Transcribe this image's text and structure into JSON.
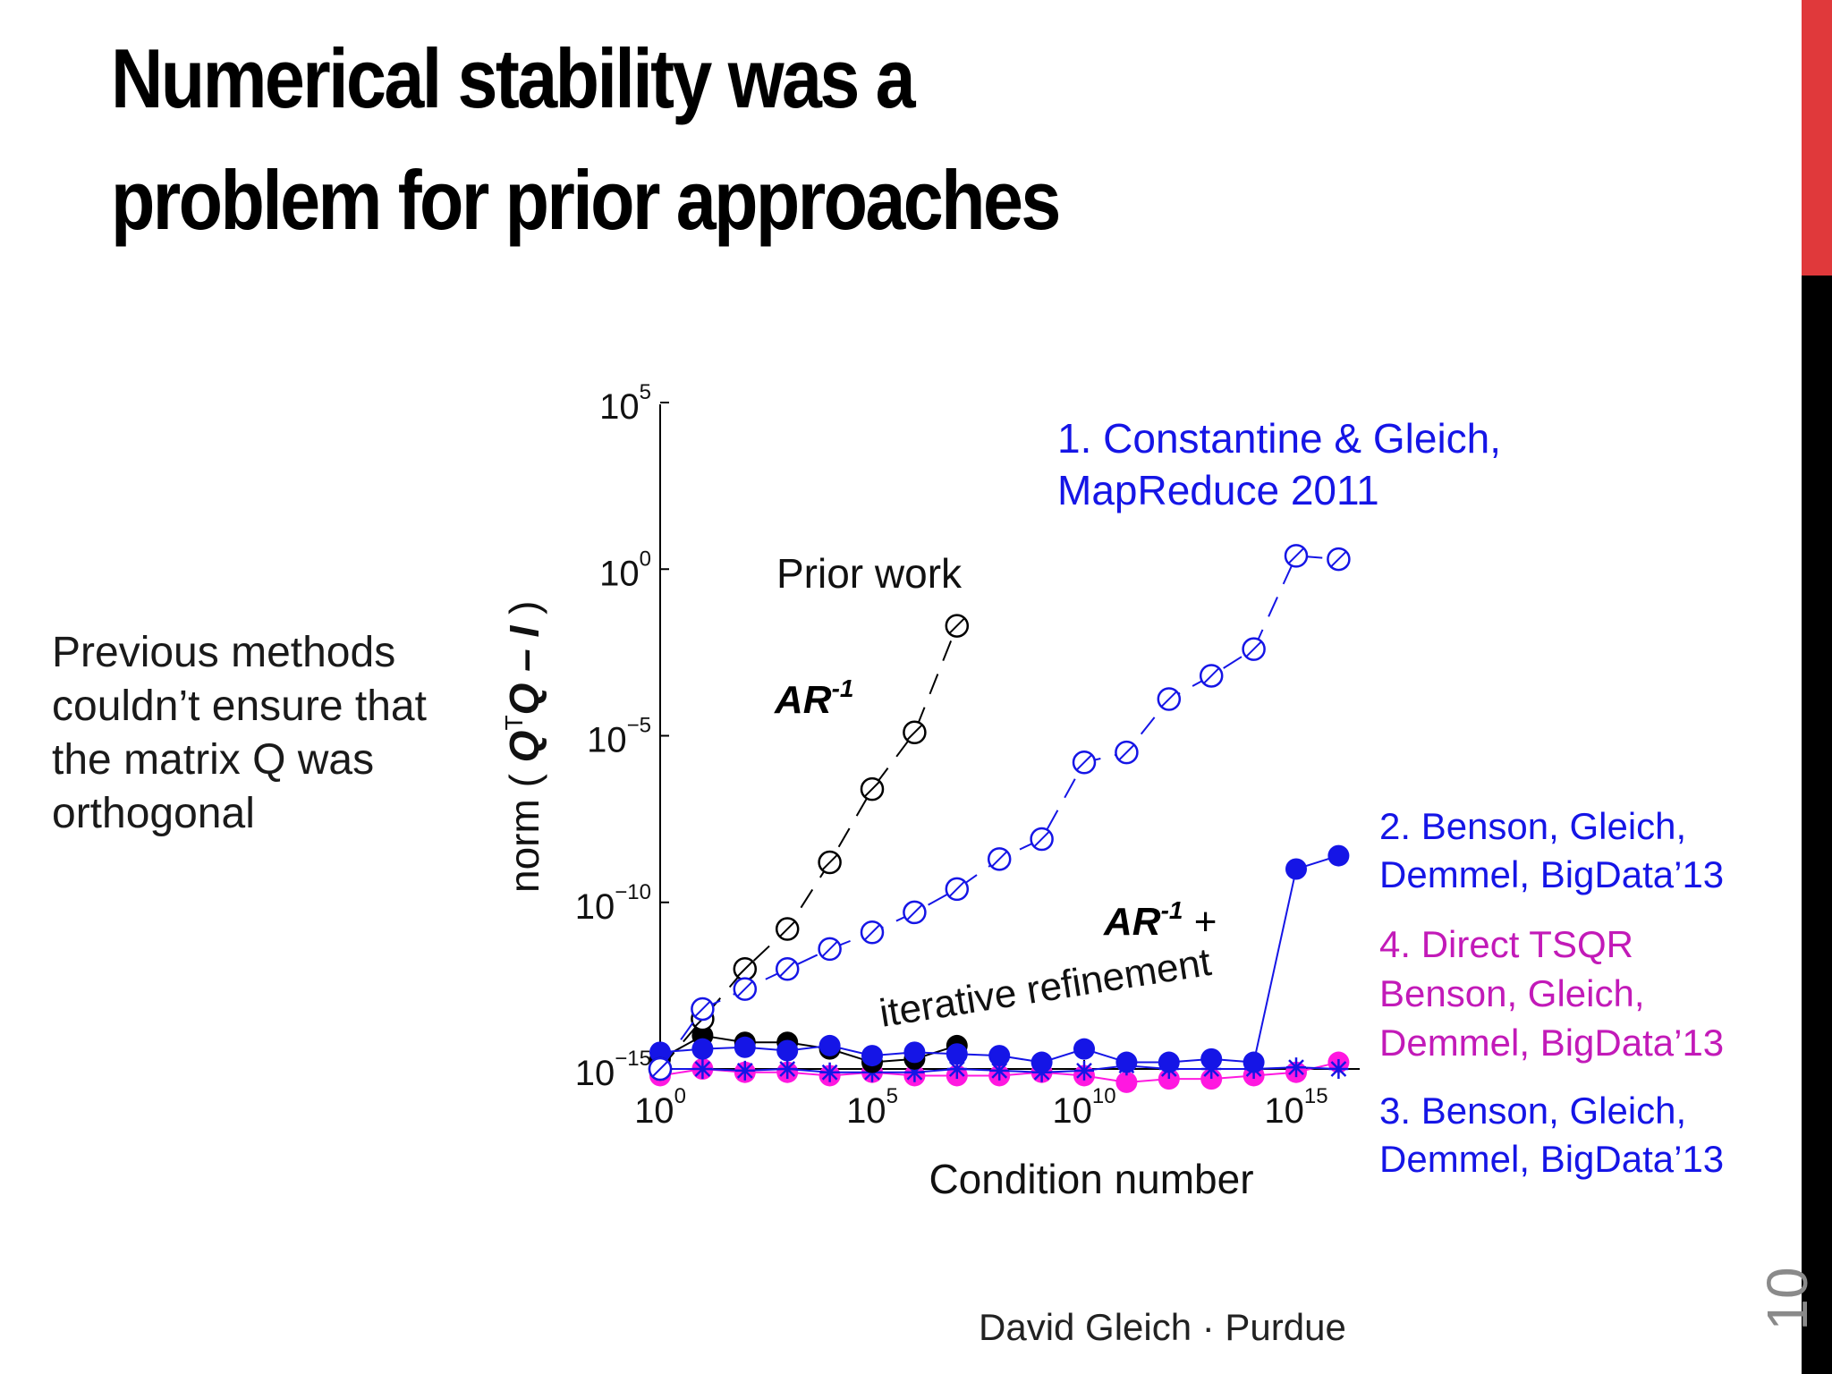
{
  "slide": {
    "title_line1": "Numerical stability was a",
    "title_line2": "problem for prior approaches",
    "side_text": "Previous methods couldn’t ensure that the matrix Q was orthogonal",
    "footer": "David Gleich · Purdue",
    "page_number": "10",
    "accent_color": "#e0393b"
  },
  "chart_data": {
    "type": "line",
    "xlabel": "Condition number",
    "ylabel": "norm ( QᵀQ – I )",
    "xscale": "log",
    "yscale": "log",
    "xlim_exponent": [
      0,
      16.5
    ],
    "ylim_exponent": [
      -15,
      5
    ],
    "x_ticks": [
      {
        "base": "10",
        "exp": "0"
      },
      {
        "base": "10",
        "exp": "5"
      },
      {
        "base": "10",
        "exp": "10"
      },
      {
        "base": "10",
        "exp": "15"
      }
    ],
    "y_ticks": [
      {
        "base": "10",
        "exp": "5"
      },
      {
        "base": "10",
        "exp": "0"
      },
      {
        "base": "10",
        "exp": "−5"
      },
      {
        "base": "10",
        "exp": "−10"
      },
      {
        "base": "10",
        "exp": "−15"
      }
    ],
    "annotations": {
      "prior_work": "Prior work",
      "ar_inv": "AR",
      "ar_inv_sup": "-1",
      "ar_inv_refine": "AR",
      "ar_inv_refine_sup": "-1",
      "ar_inv_refine_plus": " +",
      "iterative_refinement": "iterative refinement"
    },
    "legend_labels": {
      "s1_line1": "1. Constantine & Gleich,",
      "s1_line2": "MapReduce 2011",
      "s2_line1": "2. Benson, Gleich,",
      "s2_line2": "Demmel, BigData’13",
      "s4_line1": "4. Direct TSQR",
      "s4_line2": "Benson, Gleich,",
      "s4_line3": "Demmel, BigData’13",
      "s3_line1": "3. Benson, Gleich,",
      "s3_line2": "Demmel, BigData’13"
    },
    "series": [
      {
        "key": "prior",
        "color": "#000000",
        "marker": "open-circle-slash",
        "dashed": true,
        "x_log10": [
          0,
          1,
          2,
          3,
          4,
          5,
          6,
          7
        ],
        "y_log10": [
          -15,
          -13.5,
          -12,
          -10.8,
          -8.8,
          -6.6,
          -4.9,
          -1.7
        ]
      },
      {
        "key": "s1",
        "color": "#1515e6",
        "marker": "open-circle-slash",
        "dashed": true,
        "x_log10": [
          0,
          1,
          2,
          3,
          4,
          5,
          6,
          7,
          8,
          9,
          10,
          11,
          12,
          13,
          14,
          15,
          16
        ],
        "y_log10": [
          -15,
          -13.2,
          -12.6,
          -12.0,
          -11.4,
          -10.9,
          -10.3,
          -9.6,
          -8.7,
          -8.1,
          -5.8,
          -5.5,
          -3.9,
          -3.2,
          -2.4,
          0.4,
          0.3
        ]
      },
      {
        "key": "s2",
        "color": "#1515e6",
        "marker": "filled-circle",
        "dashed": false,
        "x_log10": [
          0,
          1,
          2,
          3,
          4,
          5,
          6,
          7,
          8,
          9,
          10,
          11,
          12,
          13,
          14,
          15,
          16
        ],
        "y_log10": [
          -14.5,
          -14.4,
          -14.35,
          -14.45,
          -14.3,
          -14.6,
          -14.5,
          -14.55,
          -14.6,
          -14.8,
          -14.4,
          -14.8,
          -14.8,
          -14.7,
          -14.8,
          -9.0,
          -8.6
        ]
      },
      {
        "key": "s4",
        "color": "#ff18e0",
        "marker": "filled-circle",
        "dashed": false,
        "x_log10": [
          0,
          1,
          2,
          3,
          4,
          5,
          6,
          7,
          8,
          9,
          10,
          11,
          12,
          13,
          14,
          15,
          16
        ],
        "y_log10": [
          -15.2,
          -15.0,
          -15.1,
          -15.1,
          -15.2,
          -15.1,
          -15.2,
          -15.2,
          -15.2,
          -15.1,
          -15.2,
          -15.4,
          -15.3,
          -15.3,
          -15.2,
          -15.1,
          -14.8
        ]
      },
      {
        "key": "s3",
        "color": "#1515e6",
        "marker": "star",
        "dashed": false,
        "x_log10": [
          0,
          1,
          2,
          3,
          4,
          5,
          6,
          7,
          8,
          9,
          10,
          11,
          12,
          13,
          14,
          15,
          16
        ],
        "y_log10": [
          -15.0,
          -15.0,
          -15.05,
          -15.0,
          -15.1,
          -15.1,
          -15.1,
          -15.0,
          -15.05,
          -15.1,
          -15.05,
          -14.9,
          -15.0,
          -15.0,
          -15.0,
          -14.95,
          -15.0
        ]
      },
      {
        "key": "prior_filled",
        "color": "#000000",
        "marker": "filled-circle",
        "dashed": false,
        "x_log10": [
          0,
          1,
          2,
          3,
          4,
          5,
          6,
          7
        ],
        "y_log10": [
          -14.7,
          -14.0,
          -14.2,
          -14.2,
          -14.4,
          -14.8,
          -14.7,
          -14.3
        ]
      }
    ]
  }
}
